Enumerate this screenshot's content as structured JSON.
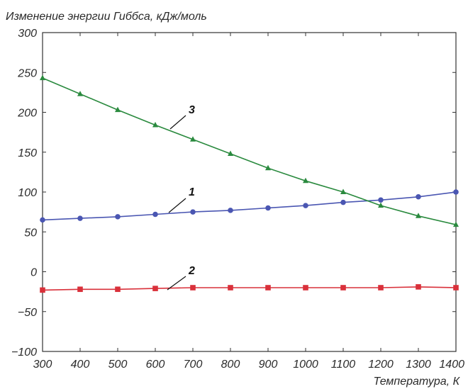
{
  "chart_data": {
    "type": "line",
    "ylabel": "Изменение энергии Гиббса, кДж/моль",
    "xlabel": "Температура, К",
    "xlim": [
      300,
      1400
    ],
    "ylim": [
      -100,
      300
    ],
    "x_ticks": [
      300,
      400,
      500,
      600,
      700,
      800,
      900,
      1000,
      1100,
      1200,
      1300,
      1400
    ],
    "y_ticks": [
      -100,
      -50,
      0,
      50,
      100,
      150,
      200,
      250,
      300
    ],
    "x_tick_labels": [
      "300",
      "400",
      "500",
      "600",
      "700",
      "800",
      "900",
      "1000",
      "1100",
      "1200",
      "1300",
      "1400"
    ],
    "y_tick_labels": [
      "−100",
      "−50",
      "0",
      "50",
      "100",
      "150",
      "200",
      "250",
      "300"
    ],
    "grid": false,
    "x": [
      300,
      400,
      500,
      600,
      700,
      800,
      900,
      1000,
      1100,
      1200,
      1300,
      1400
    ],
    "series": [
      {
        "label": "1",
        "marker": "circle",
        "color": "#4a56b2",
        "values": [
          65,
          67,
          69,
          72,
          75,
          77,
          80,
          83,
          87,
          90,
          94,
          100
        ]
      },
      {
        "label": "2",
        "marker": "square",
        "color": "#d9303a",
        "values": [
          -23,
          -22,
          -22,
          -21,
          -20,
          -20,
          -20,
          -20,
          -20,
          -20,
          -19,
          -20
        ]
      },
      {
        "label": "3",
        "marker": "triangle",
        "color": "#2a8a3e",
        "values": [
          243,
          223,
          203,
          184,
          166,
          148,
          130,
          114,
          100,
          83,
          70,
          59
        ]
      }
    ]
  }
}
